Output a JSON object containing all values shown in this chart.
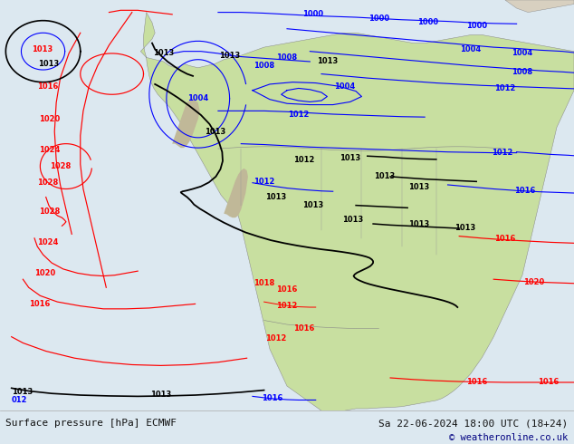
{
  "title_left": "Surface pressure [hPa] ECMWF",
  "title_right": "Sa 22-06-2024 18:00 UTC (18+24)",
  "copyright": "© weatheronline.co.uk",
  "ocean_color": "#dce8f0",
  "land_color": "#c8dfa0",
  "mountain_color": "#c0b898",
  "fig_width": 6.34,
  "fig_height": 4.9,
  "dpi": 100,
  "bottom_bar_color": "#ffffff",
  "text_color": "#111111",
  "font_size_labels": 8.0,
  "font_size_copyright": 7.5,
  "label_fontsize": 6.0
}
